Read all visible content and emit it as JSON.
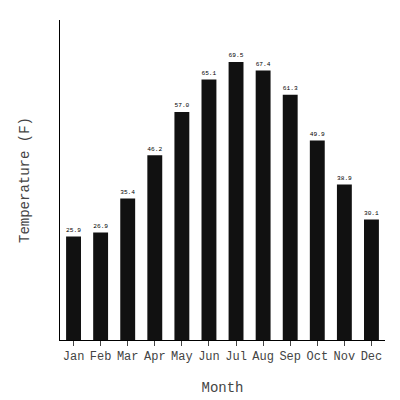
{
  "chart_data": {
    "type": "bar",
    "categories": [
      "Jan",
      "Feb",
      "Mar",
      "Apr",
      "May",
      "Jun",
      "Jul",
      "Aug",
      "Sep",
      "Oct",
      "Nov",
      "Dec"
    ],
    "values": [
      25.9,
      26.9,
      35.4,
      46.2,
      57.0,
      65.1,
      69.5,
      67.4,
      61.3,
      49.9,
      38.9,
      30.1
    ],
    "value_labels": [
      "25.9",
      "26.9",
      "35.4",
      "46.2",
      "57.0",
      "65.1",
      "69.5",
      "67.4",
      "61.3",
      "49.9",
      "38.9",
      "30.1"
    ],
    "color": "#111111",
    "xlabel": "Month",
    "ylabel": "Temperature (F)",
    "ylim": [
      0,
      80
    ],
    "grid": false,
    "data_labels": true,
    "tick_labels": "x"
  }
}
